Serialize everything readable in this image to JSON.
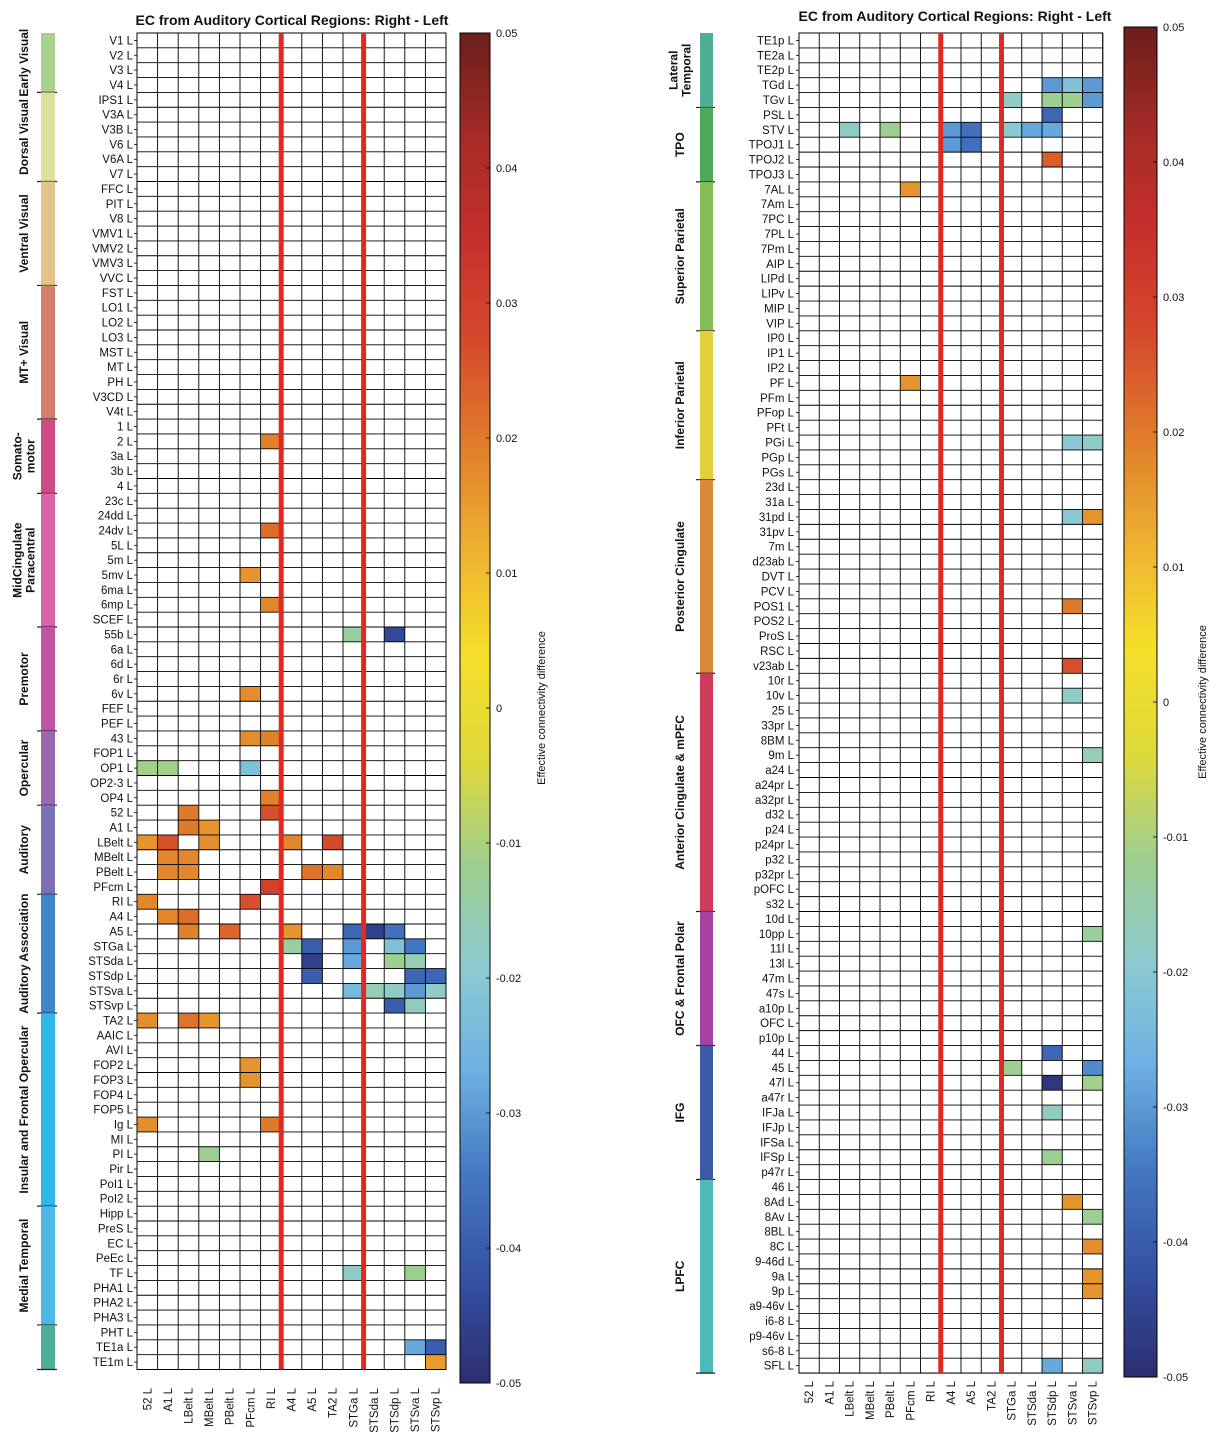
{
  "palette": {
    "stops": [
      "#2b2e6e",
      "#3551a4",
      "#4478c1",
      "#6db0e2",
      "#8dcbd1",
      "#9fcf8e",
      "#dfd93a",
      "#f5df2a",
      "#eeb331",
      "#e17f2b",
      "#d64a2c",
      "#c7302c",
      "#a52b27",
      "#6b1f1b"
    ],
    "divider": "#e02a1f",
    "grid": "#000000"
  },
  "chart_data": [
    {
      "type": "heatmap",
      "title": "EC from Auditory Cortical Regions: Right - Left",
      "colorbar_label": "Effective connectivity difference",
      "value_range": [
        -0.05,
        0.05
      ],
      "colorbar_ticks": [
        "0.05",
        "0.04",
        "0.03",
        "0.02",
        "0.01",
        "0",
        "-0.01",
        "-0.02",
        "-0.03",
        "-0.04",
        "-0.05"
      ],
      "dividers_after_col": [
        6,
        10
      ],
      "columns": [
        "52 L",
        "A1 L",
        "LBelt L",
        "MBelt L",
        "PBelt L",
        "PFcm L",
        "RI L",
        "A4 L",
        "A5 L",
        "TA2 L",
        "STGa L",
        "STSda L",
        "STSdp L",
        "STSva L",
        "STSvp L"
      ],
      "rows": [
        "V1 L",
        "V2 L",
        "V3 L",
        "V4 L",
        "IPS1 L",
        "V3A L",
        "V3B L",
        "V6 L",
        "V6A L",
        "V7 L",
        "FFC L",
        "PIT L",
        "V8 L",
        "VMV1 L",
        "VMV2 L",
        "VMV3 L",
        "VVC L",
        "FST L",
        "LO1 L",
        "LO2 L",
        "LO3 L",
        "MST L",
        "MT L",
        "PH L",
        "V3CD L",
        "V4t L",
        "1 L",
        "2 L",
        "3a L",
        "3b L",
        "4 L",
        "23c L",
        "24dd L",
        "24dv L",
        "5L L",
        "5m L",
        "5mv L",
        "6ma L",
        "6mp L",
        "SCEF L",
        "55b L",
        "6a L",
        "6d L",
        "6r L",
        "6v L",
        "FEF L",
        "PEF L",
        "43 L",
        "FOP1 L",
        "OP1 L",
        "OP2-3 L",
        "OP4 L",
        "52 L",
        "A1 L",
        "LBelt L",
        "MBelt L",
        "PBelt L",
        "PFcm L",
        "RI L",
        "A4 L",
        "A5 L",
        "STGa L",
        "STSda L",
        "STSdp L",
        "STSva L",
        "STSvp L",
        "TA2 L",
        "AAIC L",
        "AVI L",
        "FOP2 L",
        "FOP3 L",
        "FOP4 L",
        "FOP5 L",
        "Ig L",
        "MI L",
        "PI L",
        "Pir L",
        "PoI1 L",
        "PoI2 L",
        "Hipp L",
        "PreS L",
        "EC L",
        "PeEc L",
        "TF L",
        "PHA1 L",
        "PHA2 L",
        "PHA3 L",
        "PHT L",
        "TE1a L",
        "TE1m L"
      ],
      "groups": [
        {
          "label": "Early Visual",
          "start": 0,
          "end": 3,
          "color": "#a9d18e"
        },
        {
          "label": "Dorsal Visual",
          "start": 4,
          "end": 9,
          "color": "#dbe09a"
        },
        {
          "label": "Ventral Visual",
          "start": 10,
          "end": 16,
          "color": "#e0c48a"
        },
        {
          "label": "MT+ Visual",
          "start": 17,
          "end": 25,
          "color": "#d4806f"
        },
        {
          "label": "Somato-\nmotor",
          "start": 26,
          "end": 30,
          "color": "#cf4b86"
        },
        {
          "label": "MidCingulate\nParacentral",
          "start": 31,
          "end": 39,
          "color": "#d963a8"
        },
        {
          "label": "Premotor",
          "start": 40,
          "end": 46,
          "color": "#c154a2"
        },
        {
          "label": "Opercular",
          "start": 47,
          "end": 51,
          "color": "#9968b0"
        },
        {
          "label": "Auditory",
          "start": 52,
          "end": 57,
          "color": "#7b6fb6"
        },
        {
          "label": "Auditory Association",
          "start": 58,
          "end": 65,
          "color": "#3f86c8"
        },
        {
          "label": "Insular and Frontal Opercular",
          "start": 66,
          "end": 78,
          "color": "#30b7ea"
        },
        {
          "label": "Medial Temporal",
          "start": 79,
          "end": 86,
          "color": "#4bb8e6"
        },
        {
          "label": "",
          "start": 87,
          "end": 89,
          "color": "#4fae97"
        }
      ],
      "cells": [
        [
          27,
          6,
          0.019
        ],
        [
          33,
          6,
          0.022
        ],
        [
          36,
          5,
          0.016
        ],
        [
          38,
          6,
          0.018
        ],
        [
          40,
          10,
          -0.014
        ],
        [
          40,
          12,
          -0.044
        ],
        [
          44,
          5,
          0.017
        ],
        [
          47,
          5,
          0.017
        ],
        [
          47,
          6,
          0.019
        ],
        [
          49,
          0,
          -0.011
        ],
        [
          49,
          1,
          -0.011
        ],
        [
          49,
          5,
          -0.022
        ],
        [
          51,
          6,
          0.019
        ],
        [
          52,
          2,
          0.02
        ],
        [
          52,
          6,
          0.026
        ],
        [
          53,
          2,
          0.02
        ],
        [
          53,
          3,
          0.016
        ],
        [
          54,
          0,
          0.016
        ],
        [
          54,
          1,
          0.026
        ],
        [
          54,
          3,
          0.017
        ],
        [
          54,
          7,
          0.018
        ],
        [
          54,
          9,
          0.027
        ],
        [
          55,
          1,
          0.018
        ],
        [
          55,
          2,
          0.018
        ],
        [
          56,
          1,
          0.018
        ],
        [
          56,
          2,
          0.018
        ],
        [
          56,
          8,
          0.021
        ],
        [
          56,
          9,
          0.018
        ],
        [
          57,
          6,
          0.03
        ],
        [
          58,
          0,
          0.018
        ],
        [
          58,
          5,
          0.026
        ],
        [
          59,
          1,
          0.018
        ],
        [
          59,
          2,
          0.022
        ],
        [
          60,
          2,
          0.019
        ],
        [
          60,
          4,
          0.023
        ],
        [
          60,
          7,
          0.016
        ],
        [
          60,
          10,
          -0.038
        ],
        [
          60,
          11,
          -0.046
        ],
        [
          60,
          12,
          -0.036
        ],
        [
          61,
          7,
          -0.014
        ],
        [
          61,
          8,
          -0.04
        ],
        [
          61,
          10,
          -0.03
        ],
        [
          61,
          12,
          -0.022
        ],
        [
          61,
          13,
          -0.035
        ],
        [
          62,
          8,
          -0.046
        ],
        [
          62,
          10,
          -0.028
        ],
        [
          62,
          12,
          -0.012
        ],
        [
          62,
          13,
          -0.016
        ],
        [
          63,
          8,
          -0.04
        ],
        [
          63,
          13,
          -0.038
        ],
        [
          63,
          14,
          -0.038
        ],
        [
          64,
          10,
          -0.024
        ],
        [
          64,
          11,
          -0.016
        ],
        [
          64,
          12,
          -0.018
        ],
        [
          64,
          13,
          -0.03
        ],
        [
          64,
          14,
          -0.018
        ],
        [
          65,
          12,
          -0.04
        ],
        [
          65,
          13,
          -0.017
        ],
        [
          66,
          0,
          0.017
        ],
        [
          66,
          2,
          0.021
        ],
        [
          66,
          3,
          0.016
        ],
        [
          69,
          5,
          0.016
        ],
        [
          70,
          5,
          0.016
        ],
        [
          73,
          0,
          0.017
        ],
        [
          73,
          6,
          0.02
        ],
        [
          75,
          3,
          -0.012
        ],
        [
          83,
          10,
          -0.018
        ],
        [
          83,
          13,
          -0.012
        ],
        [
          88,
          13,
          -0.028
        ],
        [
          88,
          14,
          -0.04
        ],
        [
          89,
          14,
          0.015
        ]
      ]
    },
    {
      "type": "heatmap",
      "title": "EC from Auditory Cortical Regions: Right - Left",
      "colorbar_label": "Effective connectivity difference",
      "value_range": [
        -0.05,
        0.05
      ],
      "colorbar_ticks": [
        "0.05",
        "0.04",
        "0.03",
        "0.02",
        "0.01",
        "0",
        "-0.01",
        "-0.02",
        "-0.03",
        "-0.04",
        "-0.05"
      ],
      "dividers_after_col": [
        6,
        9
      ],
      "columns": [
        "52 L",
        "A1 L",
        "LBelt L",
        "MBelt L",
        "PBelt L",
        "PFcm L",
        "RI L",
        "A4 L",
        "A5 L",
        "TA2 L",
        "STGa L",
        "STSda L",
        "STSdp L",
        "STSva L",
        "STSvp L"
      ],
      "rows": [
        "TE1p L",
        "TE2a L",
        "TE2p L",
        "TGd L",
        "TGv L",
        "PSL L",
        "STV L",
        "TPOJ1 L",
        "TPOJ2 L",
        "TPOJ3 L",
        "7AL L",
        "7Am L",
        "7PC L",
        "7PL L",
        "7Pm L",
        "AIP L",
        "LIPd L",
        "LIPv L",
        "MIP L",
        "VIP L",
        "IP0 L",
        "IP1 L",
        "IP2 L",
        "PF L",
        "PFm L",
        "PFop L",
        "PFt L",
        "PGi L",
        "PGp L",
        "PGs L",
        "23d L",
        "31a L",
        "31pd L",
        "31pv L",
        "7m L",
        "d23ab L",
        "DVT L",
        "PCV L",
        "POS1 L",
        "POS2 L",
        "ProS L",
        "RSC L",
        "v23ab L",
        "10r L",
        "10v L",
        "25 L",
        "33pr L",
        "8BM L",
        "9m L",
        "a24 L",
        "a24pr L",
        "a32pr L",
        "d32 L",
        "p24 L",
        "p24pr L",
        "p32 L",
        "p32pr L",
        "pOFC L",
        "s32 L",
        "10d L",
        "10pp L",
        "11l L",
        "13l L",
        "47m L",
        "47s L",
        "a10p L",
        "OFC L",
        "p10p L",
        "44 L",
        "45 L",
        "47l L",
        "a47r L",
        "IFJa L",
        "IFJp L",
        "IFSa L",
        "IFSp L",
        "p47r L",
        "46 L",
        "8Ad L",
        "8Av L",
        "8BL L",
        "8C L",
        "9-46d L",
        "9a L",
        "9p L",
        "a9-46v L",
        "i6-8 L",
        "p9-46v L",
        "s6-8 L",
        "SFL L"
      ],
      "groups": [
        {
          "label": "Lateral\nTemporal",
          "start": 0,
          "end": 4,
          "color": "#4eae96"
        },
        {
          "label": "TPO",
          "start": 5,
          "end": 9,
          "color": "#4ea85a"
        },
        {
          "label": "Superior Parietal",
          "start": 10,
          "end": 19,
          "color": "#84bc55"
        },
        {
          "label": "Inferior Parietal",
          "start": 20,
          "end": 29,
          "color": "#e3cf3c"
        },
        {
          "label": "Posterior Cingulate",
          "start": 30,
          "end": 42,
          "color": "#d8893a"
        },
        {
          "label": "Anterior Cingulate & mPFC",
          "start": 43,
          "end": 58,
          "color": "#cf3c59"
        },
        {
          "label": "OFC & Frontal Polar",
          "start": 59,
          "end": 67,
          "color": "#a3439d"
        },
        {
          "label": "IFG",
          "start": 68,
          "end": 76,
          "color": "#3c5aa8"
        },
        {
          "label": "LPFC",
          "start": 77,
          "end": 89,
          "color": "#4fb8b8"
        }
      ],
      "cells": [
        [
          3,
          12,
          -0.03
        ],
        [
          3,
          13,
          -0.022
        ],
        [
          3,
          14,
          -0.03
        ],
        [
          4,
          10,
          -0.018
        ],
        [
          4,
          12,
          -0.012
        ],
        [
          4,
          13,
          -0.012
        ],
        [
          4,
          14,
          -0.03
        ],
        [
          5,
          12,
          -0.038
        ],
        [
          6,
          2,
          -0.018
        ],
        [
          6,
          4,
          -0.012
        ],
        [
          6,
          7,
          -0.03
        ],
        [
          6,
          8,
          -0.036
        ],
        [
          6,
          10,
          -0.02
        ],
        [
          6,
          11,
          -0.028
        ],
        [
          6,
          12,
          -0.028
        ],
        [
          7,
          7,
          -0.03
        ],
        [
          7,
          8,
          -0.036
        ],
        [
          8,
          12,
          0.024
        ],
        [
          10,
          5,
          0.016
        ],
        [
          23,
          5,
          0.016
        ],
        [
          27,
          13,
          -0.02
        ],
        [
          27,
          14,
          -0.018
        ],
        [
          32,
          13,
          -0.02
        ],
        [
          32,
          14,
          0.016
        ],
        [
          38,
          13,
          0.02
        ],
        [
          42,
          13,
          0.026
        ],
        [
          44,
          13,
          -0.018
        ],
        [
          48,
          14,
          -0.016
        ],
        [
          60,
          14,
          -0.013
        ],
        [
          68,
          12,
          -0.038
        ],
        [
          69,
          10,
          -0.012
        ],
        [
          69,
          14,
          -0.032
        ],
        [
          70,
          12,
          -0.048
        ],
        [
          70,
          14,
          -0.011
        ],
        [
          72,
          12,
          -0.017
        ],
        [
          75,
          12,
          -0.012
        ],
        [
          78,
          13,
          0.016
        ],
        [
          79,
          14,
          -0.012
        ],
        [
          81,
          14,
          0.017
        ],
        [
          83,
          14,
          0.016
        ],
        [
          84,
          14,
          0.016
        ],
        [
          89,
          12,
          -0.028
        ],
        [
          89,
          14,
          -0.018
        ]
      ]
    }
  ]
}
